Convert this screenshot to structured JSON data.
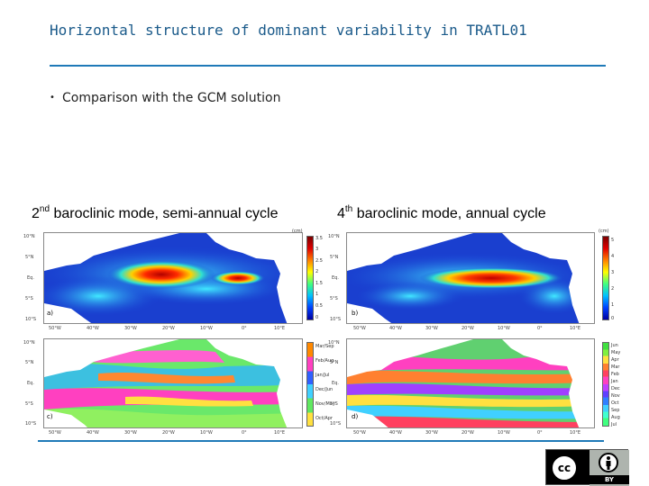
{
  "slide": {
    "title": "Horizontal structure of dominant variability in TRATL01",
    "bullet": "Comparison with the GCM solution"
  },
  "captions": {
    "left": {
      "ordinal": "2",
      "suffix": "nd",
      "rest": " baroclinic mode, semi-annual cycle"
    },
    "right": {
      "ordinal": "4",
      "suffix": "th",
      "rest": " baroclinic mode, annual cycle"
    }
  },
  "panels": {
    "left": {
      "ylabels": [
        "10°N",
        "5°N",
        "Eq.",
        "5°S",
        "10°S"
      ],
      "xlabels": [
        "50°W",
        "40°W",
        "30°W",
        "20°W",
        "10°W",
        "0°",
        "10°E"
      ],
      "top_label": "a)",
      "bottom_label": "c)",
      "amp_unit": "(cm)",
      "amp_ticks": [
        "3.5",
        "3",
        "2.5",
        "2",
        "1.5",
        "1",
        "0.5",
        "0"
      ],
      "phase_ticks": [
        "Mar/Sep",
        "Feb/Aug",
        "Jan/Jul",
        "Dec/Jun",
        "Nov/May",
        "Oct/Apr"
      ]
    },
    "right": {
      "ylabels": [
        "10°N",
        "5°N",
        "Eq.",
        "5°S",
        "10°S"
      ],
      "xlabels": [
        "50°W",
        "40°W",
        "30°W",
        "20°W",
        "10°W",
        "0°",
        "10°E"
      ],
      "top_label": "b)",
      "bottom_label": "d)",
      "amp_unit": "(cm)",
      "amp_ticks": [
        "5",
        "4",
        "3",
        "2",
        "1",
        "0"
      ],
      "phase_ticks": [
        "Jun",
        "May",
        "Apr",
        "Mar",
        "Feb",
        "Jan",
        "Dec",
        "Nov",
        "Oct",
        "Sep",
        "Aug",
        "Jul"
      ]
    }
  },
  "license": {
    "cc": "cc",
    "by": "BY"
  },
  "colors": {
    "title": "#1a5a8a",
    "rule": "#1f7ab8"
  }
}
